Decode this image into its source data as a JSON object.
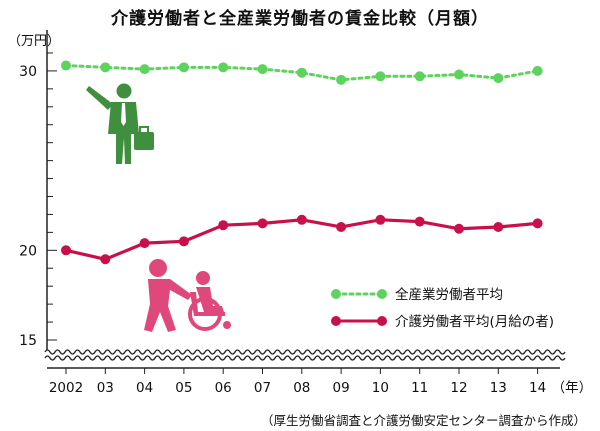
{
  "title": "介護労働者と全産業労働者の賃金比較（月額）",
  "unit_label": "（万円）",
  "x_unit": "（年）",
  "source_note": "（厚生労働省調査と介護労働安定センター調査から作成）",
  "colors": {
    "green": "#5dd35d",
    "crimson": "#c8114a",
    "pink": "#e0487c",
    "figure_green": "#3f8f3f",
    "axis": "#222222"
  },
  "icons": [
    "businessman-icon",
    "wheelchair-caregiver-icon"
  ],
  "chart_data": {
    "type": "line",
    "title": "介護労働者と全産業労働者の賃金比較（月額）",
    "xlabel": "（年）",
    "ylabel": "（万円）",
    "categories": [
      "2002",
      "03",
      "04",
      "05",
      "06",
      "07",
      "08",
      "09",
      "10",
      "11",
      "12",
      "13",
      "14"
    ],
    "x_axis_suffix": "（年）",
    "y_ticks": [
      15,
      20,
      30
    ],
    "ylim": [
      15,
      31.5
    ],
    "y_axis_break": "wavy line below 15",
    "grid": false,
    "legend_position": "lower-right",
    "series": [
      {
        "name": "全産業労働者平均",
        "style": "dotted",
        "color": "#5dd35d",
        "values": [
          30.3,
          30.2,
          30.1,
          30.2,
          30.2,
          30.1,
          29.9,
          29.5,
          29.7,
          29.7,
          29.8,
          29.6,
          30.0
        ]
      },
      {
        "name": "介護労働者平均(月給の者)",
        "style": "solid",
        "color": "#c8114a",
        "values": [
          20.0,
          19.5,
          20.4,
          20.5,
          21.4,
          21.5,
          21.7,
          21.3,
          21.7,
          21.6,
          21.2,
          21.3,
          21.5
        ]
      }
    ]
  }
}
